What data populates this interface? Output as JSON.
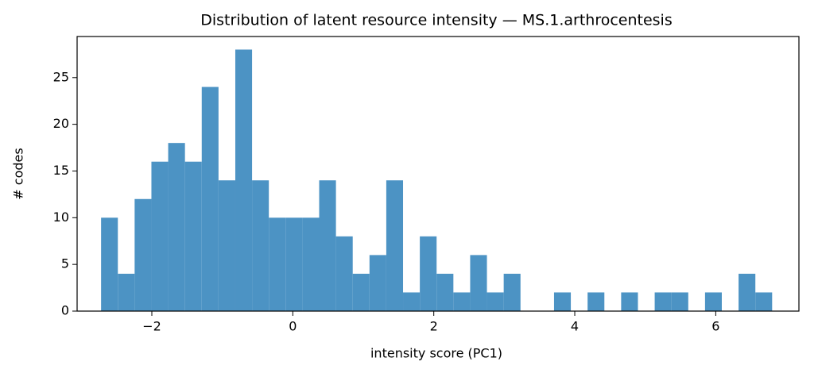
{
  "chart_data": {
    "type": "histogram",
    "title": "Distribution of latent resource intensity — MS.1.arthrocentesis",
    "x_label": "intensity score (PC1)",
    "y_label": "# codes",
    "bins": [
      -2.72,
      -2.482,
      -2.244,
      -2.006,
      -1.768,
      -1.53,
      -1.292,
      -1.054,
      -0.816,
      -0.578,
      -0.34,
      -0.102,
      0.136,
      0.374,
      0.612,
      0.85,
      1.088,
      1.326,
      1.564,
      1.802,
      2.04,
      2.278,
      2.516,
      2.754,
      2.992,
      3.23,
      3.468,
      3.706,
      3.944,
      4.182,
      4.42,
      4.658,
      4.896,
      5.134,
      5.372,
      5.61,
      5.848,
      6.086,
      6.324,
      6.562,
      6.8
    ],
    "counts": [
      10,
      4,
      12,
      16,
      18,
      16,
      24,
      14,
      28,
      14,
      10,
      10,
      10,
      14,
      8,
      4,
      6,
      14,
      2,
      8,
      4,
      2,
      6,
      2,
      4,
      0,
      0,
      2,
      0,
      2,
      0,
      2,
      0,
      2,
      2,
      0,
      2,
      0,
      4,
      2
    ],
    "color": "#4c93c4",
    "xlim": [
      -3.06,
      7.18
    ],
    "ylim": [
      0,
      29.4
    ],
    "xticks": [
      {
        "value": -2,
        "label": "−2"
      },
      0,
      2,
      4,
      6
    ],
    "yticks": [
      0,
      5,
      10,
      15,
      20,
      25
    ]
  }
}
